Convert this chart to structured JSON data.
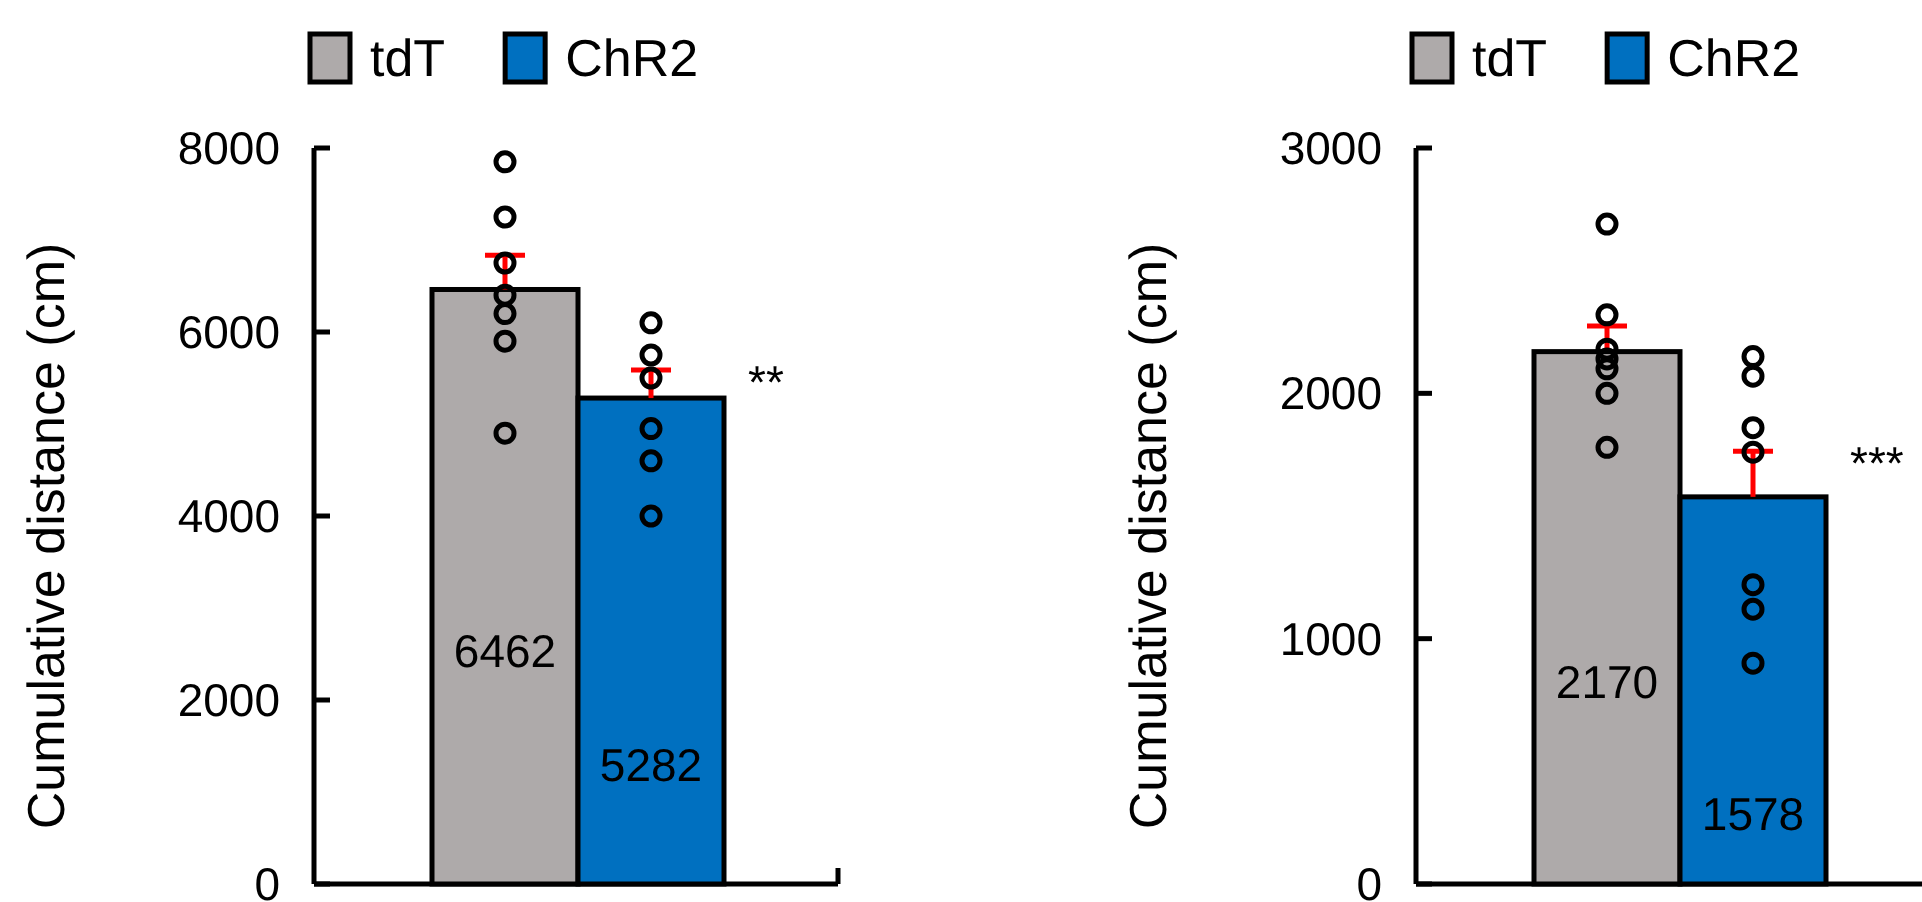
{
  "chart_data": [
    {
      "type": "bar",
      "ylabel": "Cumulative distance (cm)",
      "categories": [
        "tdT",
        "ChR2"
      ],
      "tick_labels": "y",
      "ylim": [
        0,
        8000
      ],
      "yticks": [
        0,
        2000,
        4000,
        6000,
        8000
      ],
      "legend": "top",
      "annotations": [
        "**"
      ],
      "series": [
        {
          "name": "tdT",
          "color": "#aeaaaa",
          "values": [
            6462,
            null
          ],
          "value_labels": [
            "6462",
            null
          ],
          "errors": [
            [
              6462,
              6833
            ],
            null
          ]
        },
        {
          "name": "ChR2",
          "color": "#0070c0",
          "values": [
            null,
            5282
          ],
          "value_labels": [
            null,
            "5282"
          ],
          "errors": [
            null,
            [
              5282,
              5587
            ]
          ]
        },
        {
          "type": "scatter",
          "color": "#000000",
          "x": [
            "tdT",
            "tdT",
            "tdT",
            "tdT",
            "tdT",
            "tdT",
            "tdT"
          ],
          "values": [
            7850,
            7250,
            6750,
            6400,
            6200,
            5900,
            4900
          ]
        },
        {
          "type": "scatter",
          "color": "#000000",
          "x": [
            "ChR2",
            "ChR2",
            "ChR2",
            "ChR2",
            "ChR2",
            "ChR2"
          ],
          "values": [
            6100,
            5750,
            5500,
            4950,
            4600,
            4000
          ]
        }
      ]
    },
    {
      "type": "bar",
      "ylabel": "Cumulative distance (cm)",
      "categories": [
        "tdT",
        "ChR2"
      ],
      "tick_labels": "y",
      "ylim": [
        0,
        3000
      ],
      "yticks": [
        0,
        1000,
        2000,
        3000
      ],
      "legend": "top",
      "annotations": [
        "***"
      ],
      "series": [
        {
          "name": "tdT",
          "color": "#aeaaaa",
          "values": [
            2170,
            null
          ],
          "value_labels": [
            "2170",
            null
          ],
          "errors": [
            [
              2170,
              2274
            ],
            null
          ]
        },
        {
          "name": "ChR2",
          "color": "#0070c0",
          "values": [
            null,
            1578
          ],
          "value_labels": [
            null,
            "1578"
          ],
          "errors": [
            null,
            [
              1578,
              1764
            ]
          ]
        },
        {
          "type": "scatter",
          "color": "#000000",
          "x": [
            "tdT",
            "tdT",
            "tdT",
            "tdT",
            "tdT",
            "tdT",
            "tdT"
          ],
          "values": [
            2690,
            2320,
            2180,
            2140,
            2100,
            2000,
            1780
          ]
        },
        {
          "type": "scatter",
          "color": "#000000",
          "x": [
            "ChR2",
            "ChR2",
            "ChR2",
            "ChR2",
            "ChR2",
            "ChR2",
            "ChR2"
          ],
          "values": [
            2150,
            2070,
            1860,
            1760,
            1220,
            1120,
            900
          ]
        }
      ]
    }
  ]
}
